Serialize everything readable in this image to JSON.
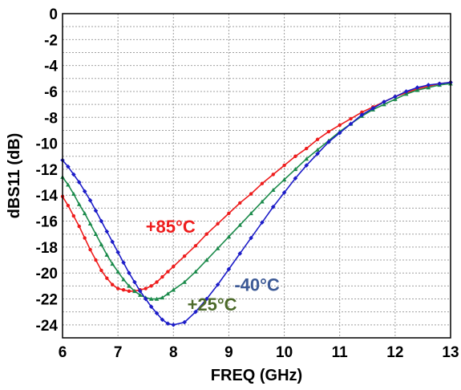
{
  "chart_data": {
    "type": "line",
    "title": "",
    "xlabel": "FREQ (GHz)",
    "ylabel": "dBS11 (dB)",
    "xlim": [
      6,
      13
    ],
    "ylim": [
      -25,
      0
    ],
    "xticks": [
      "6",
      "7",
      "8",
      "9",
      "10",
      "11",
      "12",
      "13"
    ],
    "yticks": [
      "0",
      "-2",
      "-4",
      "-6",
      "-8",
      "-10",
      "-12",
      "-14",
      "-16",
      "-18",
      "-20",
      "-22",
      "-24"
    ],
    "grid": true,
    "series": [
      {
        "name": "+85°C",
        "color": "#ee1c1c",
        "marker": "circle",
        "x": [
          6.0,
          6.1,
          6.2,
          6.3,
          6.4,
          6.5,
          6.6,
          6.7,
          6.8,
          6.9,
          7.0,
          7.1,
          7.2,
          7.3,
          7.4,
          7.5,
          7.6,
          7.7,
          7.8,
          7.9,
          8.0,
          8.2,
          8.4,
          8.6,
          8.8,
          9.0,
          9.2,
          9.4,
          9.6,
          9.8,
          10.0,
          10.2,
          10.4,
          10.6,
          10.8,
          11.0,
          11.2,
          11.4,
          11.6,
          11.8,
          12.0,
          12.2,
          12.4,
          12.6,
          12.8,
          13.0
        ],
        "y": [
          -14.1,
          -14.8,
          -15.6,
          -16.4,
          -17.3,
          -18.2,
          -19.0,
          -19.8,
          -20.4,
          -20.9,
          -21.2,
          -21.3,
          -21.4,
          -21.4,
          -21.3,
          -21.2,
          -21.0,
          -20.7,
          -20.3,
          -19.9,
          -19.5,
          -18.7,
          -17.9,
          -17.0,
          -16.2,
          -15.4,
          -14.6,
          -13.9,
          -13.1,
          -12.4,
          -11.7,
          -11.0,
          -10.4,
          -9.7,
          -9.1,
          -8.6,
          -8.1,
          -7.6,
          -7.2,
          -6.8,
          -6.4,
          -6.1,
          -5.8,
          -5.6,
          -5.4,
          -5.3
        ]
      },
      {
        "name": "+25°C",
        "color": "#1a8a4a",
        "marker": "triangle",
        "x": [
          6.0,
          6.1,
          6.2,
          6.3,
          6.4,
          6.5,
          6.6,
          6.7,
          6.8,
          6.9,
          7.0,
          7.1,
          7.2,
          7.3,
          7.4,
          7.5,
          7.6,
          7.7,
          7.8,
          7.9,
          8.0,
          8.2,
          8.4,
          8.6,
          8.8,
          9.0,
          9.2,
          9.4,
          9.6,
          9.8,
          10.0,
          10.2,
          10.4,
          10.6,
          10.8,
          11.0,
          11.2,
          11.4,
          11.6,
          11.8,
          12.0,
          12.2,
          12.4,
          12.6,
          12.8,
          13.0
        ],
        "y": [
          -12.6,
          -13.2,
          -13.9,
          -14.7,
          -15.4,
          -16.2,
          -17.0,
          -17.8,
          -18.6,
          -19.3,
          -19.9,
          -20.5,
          -21.0,
          -21.4,
          -21.7,
          -21.9,
          -22.0,
          -22.0,
          -21.9,
          -21.6,
          -21.3,
          -20.7,
          -19.9,
          -19.0,
          -18.1,
          -17.2,
          -16.3,
          -15.4,
          -14.5,
          -13.6,
          -12.8,
          -12.0,
          -11.2,
          -10.5,
          -9.8,
          -9.1,
          -8.5,
          -7.9,
          -7.4,
          -7.0,
          -6.6,
          -6.2,
          -5.9,
          -5.7,
          -5.5,
          -5.4
        ]
      },
      {
        "name": "-40°C",
        "color": "#1c1cc8",
        "marker": "diamond",
        "x": [
          6.0,
          6.1,
          6.2,
          6.3,
          6.4,
          6.5,
          6.6,
          6.7,
          6.8,
          6.9,
          7.0,
          7.1,
          7.2,
          7.3,
          7.4,
          7.5,
          7.6,
          7.7,
          7.8,
          7.9,
          8.0,
          8.2,
          8.4,
          8.6,
          8.8,
          9.0,
          9.2,
          9.4,
          9.6,
          9.8,
          10.0,
          10.2,
          10.4,
          10.6,
          10.8,
          11.0,
          11.2,
          11.4,
          11.6,
          11.8,
          12.0,
          12.2,
          12.4,
          12.6,
          12.8,
          13.0
        ],
        "y": [
          -11.3,
          -11.8,
          -12.4,
          -13.0,
          -13.7,
          -14.4,
          -15.2,
          -16.0,
          -16.8,
          -17.6,
          -18.4,
          -19.2,
          -20.0,
          -20.7,
          -21.4,
          -22.0,
          -22.6,
          -23.1,
          -23.6,
          -23.9,
          -24.0,
          -23.8,
          -23.0,
          -22.0,
          -20.9,
          -19.7,
          -18.5,
          -17.3,
          -16.1,
          -14.9,
          -13.8,
          -12.7,
          -11.7,
          -10.8,
          -9.9,
          -9.2,
          -8.5,
          -7.8,
          -7.3,
          -6.8,
          -6.4,
          -6.0,
          -5.7,
          -5.5,
          -5.4,
          -5.3
        ]
      }
    ],
    "annotations": [
      {
        "text": "+85°C",
        "color": "#ee1c1c",
        "x": 7.5,
        "y": -16.4
      },
      {
        "text": "-40°C",
        "color": "#3d5a96",
        "x": 9.1,
        "y": -20.9
      },
      {
        "text": "+25°C",
        "color": "#4c6a2a",
        "x": 8.25,
        "y": -22.4
      }
    ]
  }
}
